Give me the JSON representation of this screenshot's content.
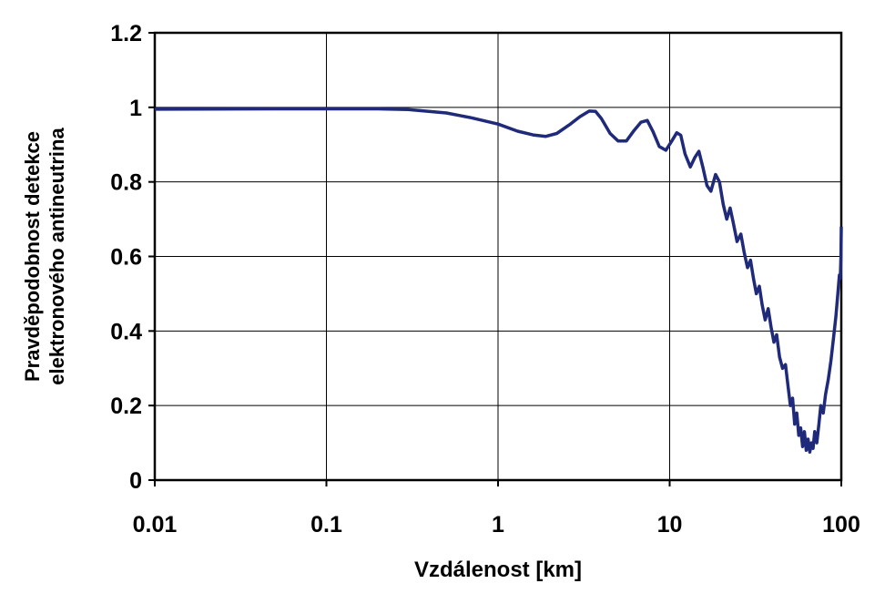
{
  "chart_data": {
    "type": "line",
    "xlabel": "Vzdálenost [km]",
    "ylabel_lines": [
      "Pravděpodobnost detekce",
      "elektronového antineutrina"
    ],
    "x_scale": "log",
    "xlim": [
      0.01,
      100
    ],
    "ylim": [
      0,
      1.2
    ],
    "x_ticks": [
      0.01,
      0.1,
      1,
      10,
      100
    ],
    "x_tick_labels": [
      "0.01",
      "0.1",
      "1",
      "10",
      "100"
    ],
    "y_ticks": [
      0,
      0.2,
      0.4,
      0.6,
      0.8,
      1,
      1.2
    ],
    "y_tick_labels": [
      "0",
      "0.2",
      "0.4",
      "0.6",
      "0.8",
      "1",
      "1.2"
    ],
    "grid": true,
    "legend": "none",
    "line_color": "#1f2a7a",
    "series": [
      {
        "x": [
          0.01,
          0.05,
          0.1,
          0.2,
          0.3,
          0.5,
          0.7,
          1.0,
          1.3,
          1.6,
          1.9,
          2.2,
          2.6,
          3.0,
          3.4,
          3.7,
          4.0,
          4.5,
          5.0,
          5.6,
          6.2,
          6.8,
          7.4,
          8.0,
          8.7,
          9.5,
          10.3,
          11.0,
          11.6,
          12.3,
          13.2,
          14.0,
          14.8,
          15.6,
          16.5,
          17.4,
          18.5,
          19.5,
          20.5,
          21.5,
          22.5,
          23.5,
          24.7,
          26.0,
          27.2,
          28.4,
          29.6,
          30.8,
          32.0,
          33.3,
          34.6,
          36.0,
          37.5,
          39.0,
          40.5,
          42.0,
          43.7,
          45.5,
          47.3,
          49.0,
          50.5,
          52.0,
          53.5,
          55.0,
          56.5,
          58.0,
          59.5,
          61.0,
          62.5,
          64.0,
          65.5,
          67.0,
          68.5,
          70.0,
          72.0,
          74.0,
          76.0,
          78.5,
          81.0,
          84.0,
          87.0,
          90.0,
          93.0,
          95.5,
          97.5,
          98.7,
          99.5,
          100.0
        ],
        "y": [
          0.995,
          0.996,
          0.996,
          0.996,
          0.994,
          0.985,
          0.972,
          0.955,
          0.936,
          0.926,
          0.922,
          0.93,
          0.953,
          0.975,
          0.99,
          0.989,
          0.97,
          0.93,
          0.91,
          0.91,
          0.938,
          0.96,
          0.965,
          0.935,
          0.895,
          0.885,
          0.91,
          0.932,
          0.925,
          0.875,
          0.84,
          0.865,
          0.882,
          0.84,
          0.79,
          0.775,
          0.82,
          0.8,
          0.74,
          0.7,
          0.73,
          0.69,
          0.64,
          0.66,
          0.61,
          0.57,
          0.59,
          0.54,
          0.5,
          0.52,
          0.47,
          0.43,
          0.46,
          0.41,
          0.37,
          0.39,
          0.33,
          0.3,
          0.31,
          0.25,
          0.2,
          0.22,
          0.15,
          0.18,
          0.12,
          0.14,
          0.09,
          0.13,
          0.08,
          0.11,
          0.075,
          0.1,
          0.085,
          0.13,
          0.1,
          0.15,
          0.2,
          0.18,
          0.23,
          0.27,
          0.32,
          0.38,
          0.44,
          0.5,
          0.55,
          0.54,
          0.6,
          0.68
        ]
      }
    ]
  }
}
